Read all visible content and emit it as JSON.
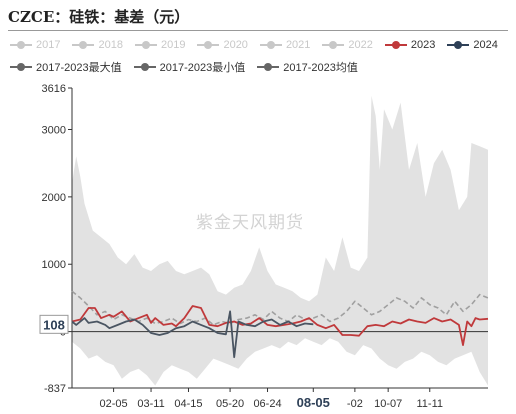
{
  "title": "CZCE：硅铁：基差（元）",
  "watermark": "紫金天风期货",
  "legend": [
    {
      "label": "2017",
      "color": "#c8c8c8",
      "active": false
    },
    {
      "label": "2018",
      "color": "#c8c8c8",
      "active": false
    },
    {
      "label": "2019",
      "color": "#c8c8c8",
      "active": false
    },
    {
      "label": "2020",
      "color": "#c8c8c8",
      "active": false
    },
    {
      "label": "2021",
      "color": "#c8c8c8",
      "active": false
    },
    {
      "label": "2022",
      "color": "#c8c8c8",
      "active": false
    },
    {
      "label": "2023",
      "color": "#c0393b",
      "active": true
    },
    {
      "label": "2024",
      "color": "#2e4057",
      "active": true
    },
    {
      "label": "2017-2023最大值",
      "color": "#666666",
      "active": true
    },
    {
      "label": "2017-2023最小值",
      "color": "#666666",
      "active": true
    },
    {
      "label": "2017-2023均值",
      "color": "#666666",
      "active": true
    }
  ],
  "colors": {
    "band": "#e2e2e2",
    "s2023": "#c0393b",
    "s2024": "#4a5562",
    "mean": "#a0a0a0",
    "axis": "#333333"
  },
  "chart_data": {
    "type": "line",
    "ylim": [
      -837,
      3616
    ],
    "y_ticks": [
      "3616",
      "3000",
      "2000",
      "1000",
      "0",
      "-837"
    ],
    "y_tick_values": [
      3616,
      3000,
      2000,
      1000,
      0,
      -837
    ],
    "x_ticks": [
      "02-05",
      "03-11",
      "04-15",
      "05-20",
      "06-24",
      "08-05",
      "-02",
      "10-07",
      "11-11"
    ],
    "x_tick_positions": [
      0.1,
      0.19,
      0.28,
      0.38,
      0.47,
      0.58,
      0.68,
      0.76,
      0.86
    ],
    "x_highlight": "08-05",
    "current_value_label": "108",
    "current_value": 108,
    "x_domain": [
      0,
      1
    ],
    "band_max": {
      "x": [
        0.0,
        0.01,
        0.02,
        0.03,
        0.05,
        0.07,
        0.09,
        0.11,
        0.13,
        0.15,
        0.17,
        0.19,
        0.21,
        0.23,
        0.25,
        0.27,
        0.29,
        0.31,
        0.33,
        0.35,
        0.37,
        0.39,
        0.41,
        0.43,
        0.45,
        0.47,
        0.49,
        0.51,
        0.53,
        0.55,
        0.57,
        0.59,
        0.61,
        0.63,
        0.65,
        0.67,
        0.69,
        0.71,
        0.72,
        0.73,
        0.74,
        0.75,
        0.77,
        0.79,
        0.81,
        0.83,
        0.85,
        0.87,
        0.89,
        0.91,
        0.93,
        0.95,
        0.96,
        0.98,
        1.0
      ],
      "y": [
        2200,
        2600,
        2300,
        1900,
        1500,
        1400,
        1300,
        1100,
        1000,
        1150,
        950,
        900,
        1000,
        1050,
        900,
        850,
        900,
        950,
        850,
        600,
        550,
        650,
        700,
        900,
        1250,
        900,
        700,
        650,
        600,
        500,
        450,
        550,
        1100,
        900,
        1400,
        950,
        900,
        1100,
        3500,
        3200,
        2400,
        3300,
        3000,
        3400,
        2400,
        2800,
        2000,
        2500,
        2700,
        2400,
        1800,
        2000,
        2800,
        2750,
        2700
      ]
    },
    "band_min": {
      "x": [
        0.0,
        0.02,
        0.04,
        0.06,
        0.08,
        0.1,
        0.12,
        0.14,
        0.16,
        0.18,
        0.2,
        0.22,
        0.24,
        0.26,
        0.28,
        0.3,
        0.32,
        0.34,
        0.36,
        0.38,
        0.4,
        0.42,
        0.44,
        0.46,
        0.48,
        0.5,
        0.52,
        0.54,
        0.56,
        0.58,
        0.6,
        0.62,
        0.64,
        0.66,
        0.68,
        0.7,
        0.72,
        0.74,
        0.76,
        0.78,
        0.8,
        0.82,
        0.84,
        0.86,
        0.88,
        0.9,
        0.92,
        0.94,
        0.96,
        0.98,
        1.0
      ],
      "y": [
        -150,
        -250,
        -400,
        -350,
        -450,
        -500,
        -700,
        -600,
        -550,
        -650,
        -800,
        -600,
        -500,
        -550,
        -600,
        -700,
        -550,
        -400,
        -450,
        -500,
        -550,
        -400,
        -300,
        -250,
        -200,
        -250,
        -150,
        -200,
        -100,
        -150,
        -200,
        -100,
        -150,
        -300,
        -350,
        -200,
        -250,
        -400,
        -500,
        -550,
        -450,
        -400,
        -300,
        -350,
        -450,
        -500,
        -400,
        -350,
        -300,
        -600,
        -800
      ]
    },
    "series": [
      {
        "name": "2023",
        "x": [
          0.0,
          0.02,
          0.04,
          0.055,
          0.07,
          0.09,
          0.1,
          0.12,
          0.14,
          0.16,
          0.18,
          0.19,
          0.2,
          0.22,
          0.24,
          0.25,
          0.27,
          0.29,
          0.31,
          0.33,
          0.35,
          0.37,
          0.39,
          0.41,
          0.43,
          0.45,
          0.47,
          0.49,
          0.51,
          0.53,
          0.55,
          0.57,
          0.59,
          0.61,
          0.63,
          0.65,
          0.67,
          0.69,
          0.71,
          0.73,
          0.75,
          0.77,
          0.79,
          0.81,
          0.83,
          0.85,
          0.87,
          0.89,
          0.91,
          0.93,
          0.94,
          0.95,
          0.96,
          0.97,
          0.98,
          1.0
        ],
        "y": [
          150,
          180,
          350,
          350,
          200,
          250,
          220,
          300,
          150,
          200,
          250,
          130,
          200,
          100,
          120,
          80,
          200,
          380,
          350,
          100,
          80,
          130,
          150,
          100,
          120,
          200,
          100,
          80,
          100,
          120,
          150,
          200,
          100,
          50,
          100,
          -50,
          -50,
          -60,
          80,
          100,
          80,
          150,
          120,
          180,
          150,
          130,
          200,
          150,
          180,
          100,
          -200,
          150,
          80,
          200,
          180,
          190
        ]
      },
      {
        "name": "2024",
        "x": [
          0.0,
          0.01,
          0.03,
          0.04,
          0.06,
          0.08,
          0.09,
          0.11,
          0.13,
          0.15,
          0.17,
          0.19,
          0.21,
          0.23,
          0.25,
          0.27,
          0.29,
          0.31,
          0.33,
          0.35,
          0.37,
          0.38,
          0.39,
          0.4,
          0.42,
          0.44,
          0.46,
          0.48,
          0.5,
          0.52,
          0.54,
          0.56,
          0.58
        ],
        "y": [
          150,
          100,
          200,
          130,
          150,
          100,
          50,
          100,
          150,
          180,
          100,
          -20,
          -50,
          -20,
          50,
          80,
          150,
          100,
          50,
          -20,
          -40,
          300,
          -380,
          150,
          100,
          80,
          150,
          180,
          100,
          150,
          80,
          120,
          108
        ]
      },
      {
        "name": "2017-2023均值",
        "x": [
          0.0,
          0.02,
          0.04,
          0.06,
          0.08,
          0.1,
          0.12,
          0.14,
          0.16,
          0.18,
          0.2,
          0.22,
          0.24,
          0.26,
          0.28,
          0.3,
          0.32,
          0.34,
          0.36,
          0.38,
          0.4,
          0.42,
          0.44,
          0.46,
          0.48,
          0.5,
          0.52,
          0.54,
          0.56,
          0.58,
          0.6,
          0.62,
          0.64,
          0.66,
          0.68,
          0.7,
          0.72,
          0.74,
          0.76,
          0.78,
          0.8,
          0.82,
          0.84,
          0.86,
          0.88,
          0.9,
          0.92,
          0.94,
          0.96,
          0.98,
          1.0
        ],
        "y": [
          600,
          500,
          380,
          250,
          300,
          180,
          250,
          200,
          150,
          200,
          120,
          150,
          200,
          120,
          180,
          150,
          200,
          100,
          150,
          120,
          180,
          200,
          250,
          180,
          300,
          200,
          150,
          250,
          180,
          200,
          250,
          150,
          200,
          300,
          450,
          350,
          250,
          300,
          400,
          500,
          450,
          350,
          500,
          400,
          350,
          250,
          450,
          300,
          400,
          550,
          500
        ]
      }
    ]
  }
}
